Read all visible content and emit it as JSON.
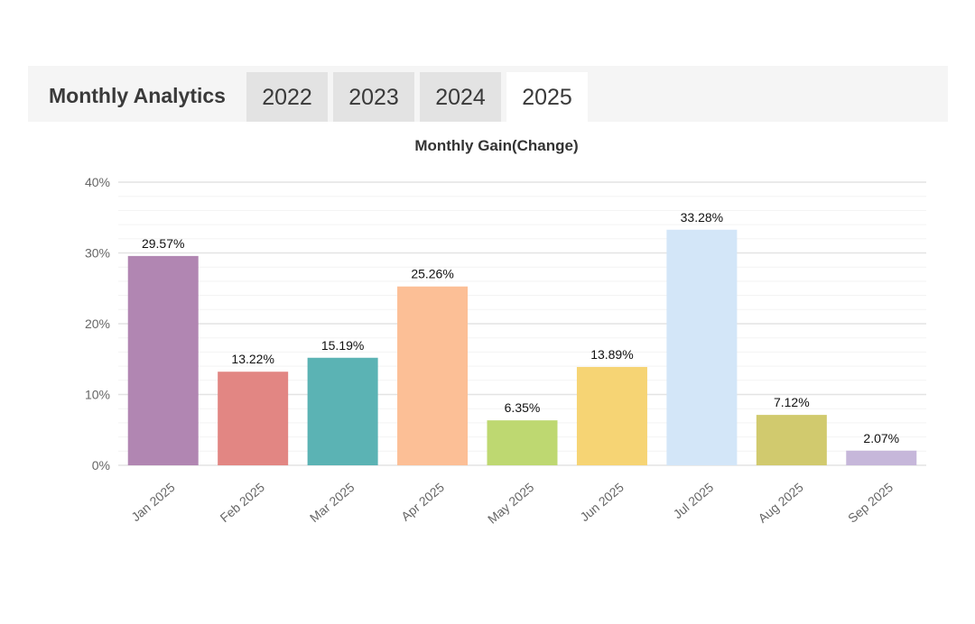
{
  "header": {
    "title": "Monthly Analytics",
    "tabs": [
      {
        "label": "2022",
        "active": false
      },
      {
        "label": "2023",
        "active": false
      },
      {
        "label": "2024",
        "active": false
      },
      {
        "label": "2025",
        "active": true
      }
    ]
  },
  "chart_data": {
    "type": "bar",
    "title": "Monthly Gain(Change)",
    "xlabel": "",
    "ylabel": "",
    "categories": [
      "Jan 2025",
      "Feb 2025",
      "Mar 2025",
      "Apr 2025",
      "May 2025",
      "Jun 2025",
      "Jul 2025",
      "Aug 2025",
      "Sep 2025"
    ],
    "values": [
      29.57,
      13.22,
      15.19,
      25.26,
      6.35,
      13.89,
      33.28,
      7.12,
      2.07
    ],
    "data_labels": [
      "29.57%",
      "13.22%",
      "15.19%",
      "25.26%",
      "6.35%",
      "13.89%",
      "33.28%",
      "7.12%",
      "2.07%"
    ],
    "colors": [
      "#b186b2",
      "#e28683",
      "#5bb3b4",
      "#fcbf96",
      "#bed871",
      "#f6d474",
      "#d3e6f8",
      "#d1ca6e",
      "#c6b7da"
    ],
    "ylim": [
      0,
      40
    ],
    "yticks": [
      0,
      10,
      20,
      30,
      40
    ],
    "ytick_labels": [
      "0%",
      "10%",
      "20%",
      "30%",
      "40%"
    ],
    "grid": true,
    "legend": "none"
  }
}
